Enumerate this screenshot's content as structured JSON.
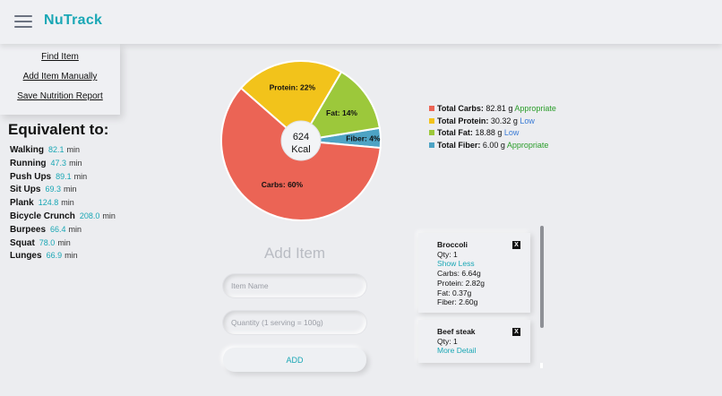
{
  "header": {
    "title": "NuTrack"
  },
  "menu": {
    "items": [
      "Find Item",
      "Add Item Manually",
      "Save Nutrition Report"
    ]
  },
  "equivalent": {
    "title": "Equivalent to:",
    "unit": "min",
    "items": [
      {
        "activity": "Walking",
        "value": "82.1"
      },
      {
        "activity": "Running",
        "value": "47.3"
      },
      {
        "activity": "Push Ups",
        "value": "89.1"
      },
      {
        "activity": "Sit Ups",
        "value": "69.3"
      },
      {
        "activity": "Plank",
        "value": "124.8"
      },
      {
        "activity": "Bicycle Crunch",
        "value": "208.0"
      },
      {
        "activity": "Burpees",
        "value": "66.4"
      },
      {
        "activity": "Squat",
        "value": "78.0"
      },
      {
        "activity": "Lunges",
        "value": "66.9"
      }
    ]
  },
  "chart_data": {
    "type": "pie",
    "center_value": "624",
    "center_unit": "Kcal",
    "slices": [
      {
        "label": "Carbs: 60%",
        "value": 60,
        "color": "#eb6455"
      },
      {
        "label": "Protein: 22%",
        "value": 22,
        "color": "#f2c31b"
      },
      {
        "label": "Fat: 14%",
        "value": 14,
        "color": "#9cc83b"
      },
      {
        "label": "Fiber: 4%",
        "value": 4,
        "color": "#4da3c4"
      }
    ]
  },
  "legend": [
    {
      "label": "Total Carbs:",
      "value": "82.81 g",
      "status": "Appropriate",
      "status_color": "#2a9d2a",
      "color": "#eb6455"
    },
    {
      "label": "Total Protein:",
      "value": "30.32 g",
      "status": "Low",
      "status_color": "#3a7bd5",
      "color": "#f2c31b"
    },
    {
      "label": "Total Fat:",
      "value": "18.88 g",
      "status": "Low",
      "status_color": "#3a7bd5",
      "color": "#9cc83b"
    },
    {
      "label": "Total Fiber:",
      "value": "6.00 g",
      "status": "Appropriate",
      "status_color": "#2a9d2a",
      "color": "#4da3c4"
    }
  ],
  "add_item": {
    "title": "Add Item",
    "name_placeholder": "Item Name",
    "qty_placeholder": "Quantity (1 serving = 100g)",
    "button_label": "ADD"
  },
  "items": [
    {
      "name": "Broccoli",
      "qty": "Qty: 1",
      "link": "Show Less",
      "details": [
        "Carbs: 6.64g",
        "Protein: 2.82g",
        "Fat: 0.37g",
        "Fiber: 2.60g"
      ]
    },
    {
      "name": "Beef steak",
      "qty": "Qty: 1",
      "link": "More Detail",
      "details": []
    }
  ],
  "close_label": "X",
  "colors": {
    "accent": "#1aa7b5",
    "background": "#ecedf0"
  }
}
